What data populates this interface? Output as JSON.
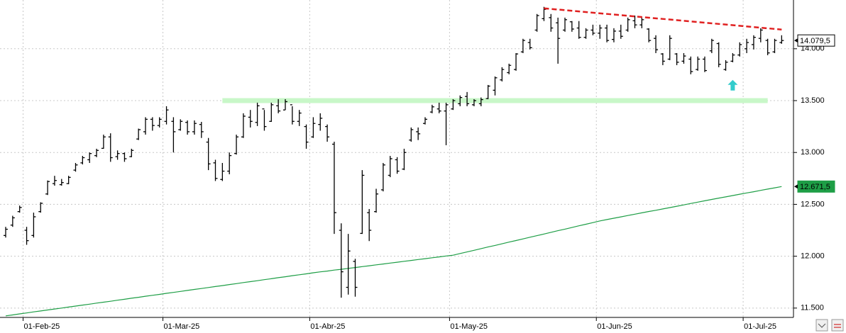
{
  "chart_data": {
    "type": "ohlc",
    "categories": [
      null,
      null,
      null,
      "01-Feb-25",
      null,
      null,
      null,
      null,
      null,
      null,
      null,
      null,
      null,
      null,
      null,
      null,
      null,
      null,
      null,
      null,
      null,
      null,
      null,
      "01-Mar-25",
      null,
      null,
      null,
      null,
      null,
      null,
      null,
      null,
      null,
      null,
      null,
      null,
      null,
      null,
      null,
      null,
      null,
      null,
      null,
      null,
      "01-Abr-25",
      null,
      null,
      null,
      null,
      null,
      null,
      null,
      null,
      null,
      null,
      null,
      null,
      null,
      null,
      null,
      null,
      null,
      null,
      null,
      "01-May-25",
      null,
      null,
      null,
      null,
      null,
      null,
      null,
      null,
      null,
      null,
      null,
      null,
      null,
      null,
      null,
      null,
      null,
      null,
      null,
      null,
      "01-Jun-25",
      null,
      null,
      null,
      null,
      null,
      null,
      null,
      null,
      null,
      null,
      null,
      null,
      null,
      null,
      null,
      null,
      null,
      null,
      null,
      null,
      "01-Jul-25",
      null,
      null,
      null,
      null,
      null
    ],
    "ohlc": {
      "color": "#000000",
      "open": [
        12200,
        12300,
        12430,
        12250,
        12200,
        12430,
        12600,
        12700,
        12690,
        12700,
        12830,
        12900,
        12930,
        12970,
        13040,
        13150,
        12960,
        12990,
        12960,
        13130,
        13200,
        13320,
        13260,
        13300,
        13300,
        13220,
        13290,
        13200,
        13270,
        13100,
        12900,
        12740,
        12820,
        12990,
        13150,
        13340,
        13290,
        13420,
        13300,
        13450,
        13410,
        13460,
        13300,
        13250,
        13150,
        13270,
        13250,
        13080,
        12250,
        11700,
        11950,
        12220,
        12420,
        12430,
        12640,
        12780,
        12930,
        12840,
        13120,
        13200,
        13280,
        13390,
        13420,
        13400,
        13420,
        13470,
        13540,
        13460,
        13470,
        13520,
        13600,
        13700,
        13770,
        13800,
        13970,
        14060,
        14180,
        14290,
        14300,
        14250,
        14180,
        14260,
        14200,
        14110,
        14180,
        14150,
        14200,
        14090,
        14170,
        14180,
        14270,
        14230,
        14190,
        14100,
        13950,
        13900,
        13950,
        13880,
        13900,
        13800,
        13900,
        13980,
        14050,
        13800,
        13880,
        13940,
        14000,
        14040,
        14100,
        14080,
        13970,
        14060
      ],
      "high": [
        12283,
        12390,
        12488,
        12283,
        12420,
        12520,
        12730,
        12775,
        12745,
        12775,
        12899,
        12967,
        13000,
        13036,
        13172,
        13185,
        13020,
        13000,
        13036,
        13230,
        13340,
        13340,
        13340,
        13446,
        13340,
        13320,
        13309,
        13309,
        13295,
        13140,
        12930,
        12899,
        13000,
        13172,
        13378,
        13410,
        13480,
        13410,
        13480,
        13514,
        13514,
        13446,
        13410,
        13270,
        13340,
        13378,
        13270,
        13104,
        12317,
        12215,
        11975,
        12830,
        12455,
        12650,
        12899,
        12967,
        12955,
        13036,
        13241,
        13241,
        13340,
        13460,
        13480,
        13480,
        13514,
        13550,
        13583,
        13514,
        13530,
        13651,
        13733,
        13822,
        13856,
        13958,
        14096,
        14096,
        14335,
        14404,
        14335,
        14300,
        14300,
        14267,
        14267,
        14198,
        14232,
        14232,
        14232,
        14198,
        14232,
        14300,
        14320,
        14300,
        14198,
        14130,
        13958,
        14130,
        13958,
        13958,
        13925,
        13925,
        13925,
        14096,
        14062,
        13890,
        13958,
        14062,
        14096,
        14130,
        14198,
        14096,
        14096,
        14130
      ],
      "low": [
        12180,
        12283,
        12420,
        12110,
        12180,
        12420,
        12590,
        12680,
        12680,
        12694,
        12815,
        12885,
        12899,
        12955,
        13036,
        12910,
        12930,
        12910,
        12955,
        13120,
        13172,
        13210,
        13241,
        13270,
        13000,
        13210,
        13172,
        13172,
        13140,
        12830,
        12725,
        12725,
        12790,
        12980,
        13140,
        13241,
        13255,
        13210,
        13295,
        13378,
        13410,
        13270,
        13255,
        13036,
        13140,
        13210,
        13104,
        12215,
        11600,
        11630,
        11610,
        12215,
        12146,
        12420,
        12625,
        12762,
        12795,
        12830,
        13104,
        13120,
        13270,
        13378,
        13378,
        13070,
        13410,
        13446,
        13446,
        13446,
        13446,
        13514,
        13550,
        13685,
        13754,
        13788,
        13958,
        13993,
        14164,
        14267,
        14164,
        13856,
        14164,
        14164,
        14096,
        14096,
        14130,
        14096,
        14062,
        14062,
        14096,
        14164,
        14198,
        14198,
        14062,
        13958,
        13842,
        13890,
        13842,
        13856,
        13754,
        13788,
        13775,
        13958,
        13822,
        13788,
        13870,
        13925,
        13958,
        13993,
        14062,
        13938,
        13958,
        14048
      ],
      "close": [
        12260,
        12370,
        12470,
        12150,
        12380,
        12510,
        12720,
        12730,
        12710,
        12760,
        12880,
        12950,
        12990,
        13020,
        13150,
        12950,
        12990,
        12940,
        13020,
        13220,
        13320,
        13260,
        13320,
        13410,
        13200,
        13300,
        13200,
        13280,
        13200,
        12890,
        12750,
        12820,
        12970,
        13150,
        13350,
        13300,
        13450,
        13250,
        13460,
        13400,
        13490,
        13300,
        13380,
        13100,
        13280,
        13330,
        13150,
        12420,
        11850,
        12050,
        11700,
        12780,
        12250,
        12600,
        12880,
        12940,
        12820,
        13000,
        13220,
        13180,
        13320,
        13440,
        13400,
        13460,
        13500,
        13530,
        13470,
        13500,
        13510,
        13640,
        13720,
        13800,
        13840,
        13950,
        14080,
        14010,
        14320,
        14380,
        14200,
        14100,
        14280,
        14190,
        14110,
        14180,
        14150,
        14200,
        14080,
        14170,
        14120,
        14280,
        14230,
        14280,
        14080,
        13990,
        13880,
        14100,
        13870,
        13930,
        13780,
        13900,
        13790,
        14080,
        13850,
        13870,
        13940,
        14040,
        14060,
        14110,
        14180,
        13960,
        14080,
        14079.5
      ],
      "last_label": "14.079,5"
    },
    "moving_average": {
      "color": "#1e9e46",
      "values": [
        11425,
        11434,
        11444,
        11453,
        11463,
        11472,
        11482,
        11491,
        11500,
        11510,
        11519,
        11529,
        11538,
        11548,
        11557,
        11566,
        11576,
        11585,
        11595,
        11604,
        11614,
        11623,
        11632,
        11642,
        11651,
        11661,
        11670,
        11680,
        11689,
        11698,
        11708,
        11717,
        11727,
        11736,
        11746,
        11755,
        11764,
        11774,
        11783,
        11793,
        11802,
        11812,
        11821,
        11830,
        11840,
        11849,
        11857,
        11866,
        11874,
        11883,
        11891,
        11900,
        11908,
        11917,
        11925,
        11934,
        11942,
        11951,
        11959,
        11968,
        11976,
        11985,
        11993,
        12002,
        12010,
        12026,
        12041,
        12057,
        12073,
        12089,
        12104,
        12120,
        12136,
        12151,
        12167,
        12183,
        12198,
        12214,
        12230,
        12246,
        12261,
        12277,
        12293,
        12308,
        12324,
        12340,
        12353,
        12366,
        12379,
        12392,
        12405,
        12418,
        12431,
        12443,
        12456,
        12469,
        12482,
        12495,
        12508,
        12521,
        12534,
        12547,
        12560,
        12572,
        12585,
        12598,
        12610,
        12622,
        12635,
        12647,
        12659,
        12671.5
      ],
      "last_label": "12.671,5"
    },
    "support": {
      "value": 13500,
      "from": 31,
      "to": 109,
      "color": "#c8f7c8"
    },
    "resistance": {
      "from": [
        77,
        14390
      ],
      "to": [
        111,
        14185
      ],
      "color": "#e02020"
    },
    "arrow": {
      "x": 104,
      "y": 13700,
      "color": "#33cccc"
    },
    "ylim": [
      11410,
      14470
    ],
    "yticks": [
      {
        "value": 11500,
        "label": "11.500"
      },
      {
        "value": 12000,
        "label": "12.000"
      },
      {
        "value": 12500,
        "label": "12.500"
      },
      {
        "value": 13000,
        "label": "13.000"
      },
      {
        "value": 13500,
        "label": "13.500"
      },
      {
        "value": 14000,
        "label": "14.000"
      }
    ],
    "grid": true
  }
}
